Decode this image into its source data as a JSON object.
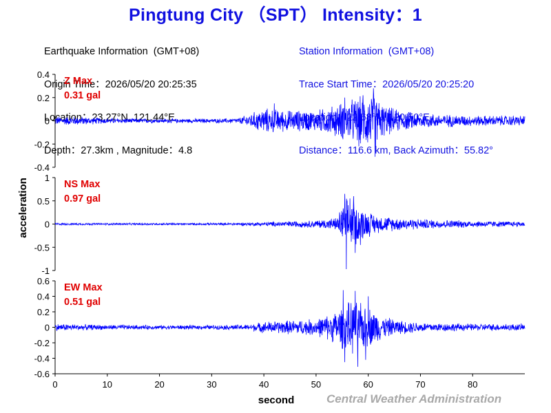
{
  "title": "Pingtung City （SPT） Intensity：1",
  "earthquake_info": {
    "heading": "Earthquake Information  (GMT+08)",
    "origin_time": "Origin Time：2026/05/20 20:25:35",
    "location": "Location：23.27°N, 121.44°E",
    "depth_magnitude": "Depth：27.3km , Magnitude：4.8"
  },
  "station_info": {
    "heading": "Station Information  (GMT+08)",
    "trace_start": "Trace Start Time：2026/05/20 20:25:20",
    "location": "Location：22.68°N, 120.50°E",
    "distance": "Distance：116.6 km, Back Azimuth：55.82°"
  },
  "credit": "Central Weather Administration",
  "colors": {
    "title": "#1010e0",
    "trace": "#0000ff",
    "max_label": "#e00000",
    "station_text": "#1010e0",
    "credit": "#a8a8a8"
  },
  "chart_data": {
    "type": "line",
    "xlabel": "second",
    "ylabel": "acceleration",
    "xlim": [
      0,
      90
    ],
    "x_ticks": [
      0,
      10,
      20,
      30,
      40,
      50,
      60,
      70,
      80
    ],
    "grid": false,
    "panels": [
      {
        "name": "Z",
        "max_label": "Z Max",
        "max_value": "0.31 gal",
        "ylim": [
          -0.4,
          0.4
        ],
        "y_ticks": [
          0.4,
          0.2,
          0,
          -0.2,
          -0.4
        ],
        "y_tick_labels": [
          "0.4",
          "0.2",
          "0",
          "-0.2",
          "-0.4"
        ],
        "envelope": [
          [
            0,
            0.04
          ],
          [
            5,
            0.04
          ],
          [
            10,
            0.025
          ],
          [
            20,
            0.02
          ],
          [
            30,
            0.02
          ],
          [
            35,
            0.025
          ],
          [
            37,
            0.06
          ],
          [
            40,
            0.12
          ],
          [
            45,
            0.1
          ],
          [
            50,
            0.1
          ],
          [
            53,
            0.14
          ],
          [
            55,
            0.18
          ],
          [
            58,
            0.22
          ],
          [
            61,
            0.27
          ],
          [
            63,
            0.15
          ],
          [
            66,
            0.1
          ],
          [
            70,
            0.07
          ],
          [
            80,
            0.05
          ],
          [
            90,
            0.05
          ]
        ],
        "peaks": [
          [
            61.0,
            0.28
          ],
          [
            61.3,
            -0.31
          ],
          [
            59.0,
            0.22
          ],
          [
            55.5,
            0.2
          ],
          [
            58.2,
            -0.22
          ],
          [
            42.0,
            0.15
          ]
        ]
      },
      {
        "name": "NS",
        "max_label": "NS Max",
        "max_value": "0.97 gal",
        "ylim": [
          -1,
          1
        ],
        "y_ticks": [
          1,
          0.5,
          0,
          -0.5,
          -1
        ],
        "y_tick_labels": [
          "1",
          "0.5",
          "0",
          "-0.5",
          "-1"
        ],
        "envelope": [
          [
            0,
            0.025
          ],
          [
            30,
            0.025
          ],
          [
            38,
            0.04
          ],
          [
            45,
            0.07
          ],
          [
            50,
            0.09
          ],
          [
            54,
            0.15
          ],
          [
            55,
            0.45
          ],
          [
            56,
            0.6
          ],
          [
            57,
            0.55
          ],
          [
            58,
            0.45
          ],
          [
            60,
            0.3
          ],
          [
            62,
            0.2
          ],
          [
            66,
            0.15
          ],
          [
            70,
            0.12
          ],
          [
            80,
            0.08
          ],
          [
            90,
            0.06
          ]
        ],
        "peaks": [
          [
            55.5,
            0.65
          ],
          [
            55.8,
            -0.97
          ],
          [
            57.2,
            0.6
          ],
          [
            57.5,
            -0.62
          ],
          [
            56.5,
            0.55
          ],
          [
            58.5,
            -0.45
          ]
        ]
      },
      {
        "name": "EW",
        "max_label": "EW Max",
        "max_value": "0.51 gal",
        "ylim": [
          -0.6,
          0.6
        ],
        "y_ticks": [
          0.6,
          0.4,
          0.2,
          0,
          -0.2,
          -0.4,
          -0.6
        ],
        "y_tick_labels": [
          "0.6",
          "0.4",
          "0.2",
          "0",
          "-0.2",
          "-0.4",
          "-0.6"
        ],
        "envelope": [
          [
            0,
            0.05
          ],
          [
            10,
            0.035
          ],
          [
            20,
            0.03
          ],
          [
            30,
            0.03
          ],
          [
            37,
            0.04
          ],
          [
            40,
            0.08
          ],
          [
            45,
            0.1
          ],
          [
            50,
            0.12
          ],
          [
            53,
            0.2
          ],
          [
            55,
            0.3
          ],
          [
            57,
            0.38
          ],
          [
            60,
            0.3
          ],
          [
            63,
            0.15
          ],
          [
            66,
            0.1
          ],
          [
            70,
            0.07
          ],
          [
            80,
            0.05
          ],
          [
            90,
            0.05
          ]
        ],
        "peaks": [
          [
            55.2,
            0.48
          ],
          [
            55.5,
            -0.45
          ],
          [
            57.5,
            0.47
          ],
          [
            58.0,
            -0.51
          ],
          [
            60.0,
            0.4
          ],
          [
            59.5,
            -0.42
          ]
        ]
      }
    ]
  }
}
